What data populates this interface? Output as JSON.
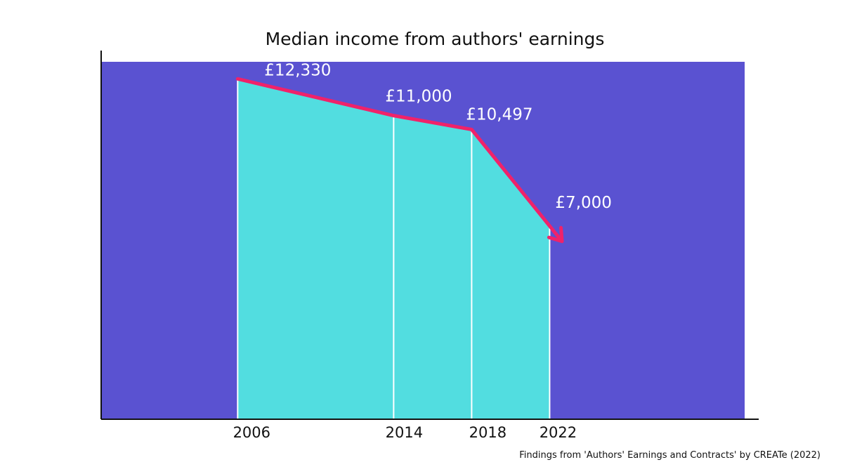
{
  "chart_data": {
    "type": "area",
    "title": "Median income from authors' earnings",
    "xlabel": "",
    "ylabel": "",
    "x": [
      2006,
      2014,
      2018,
      2022
    ],
    "categories": [
      "2006",
      "2014",
      "2018",
      "2022"
    ],
    "series": [
      {
        "name": "Median income",
        "values": [
          12330,
          11000,
          10497,
          7000
        ],
        "labels": [
          "£12,330",
          "£11,000",
          "£10,497",
          "£7,000"
        ]
      }
    ],
    "xlim": [
      1999,
      2032
    ],
    "ylim": [
      0,
      12950
    ],
    "grid": false,
    "legend": "none",
    "source_note": "Findings from 'Authors' Earnings and Contracts' by CREATe (2022)"
  },
  "colors": {
    "plot_background": "#5a52d1",
    "area_fill": "#52dde0",
    "trend_line": "#f0226a",
    "divider": "#ffffff",
    "axis": "#111111",
    "value_text": "#ffffff",
    "text": "#111111"
  },
  "icons": {
    "line_end": "arrow-head-icon"
  }
}
